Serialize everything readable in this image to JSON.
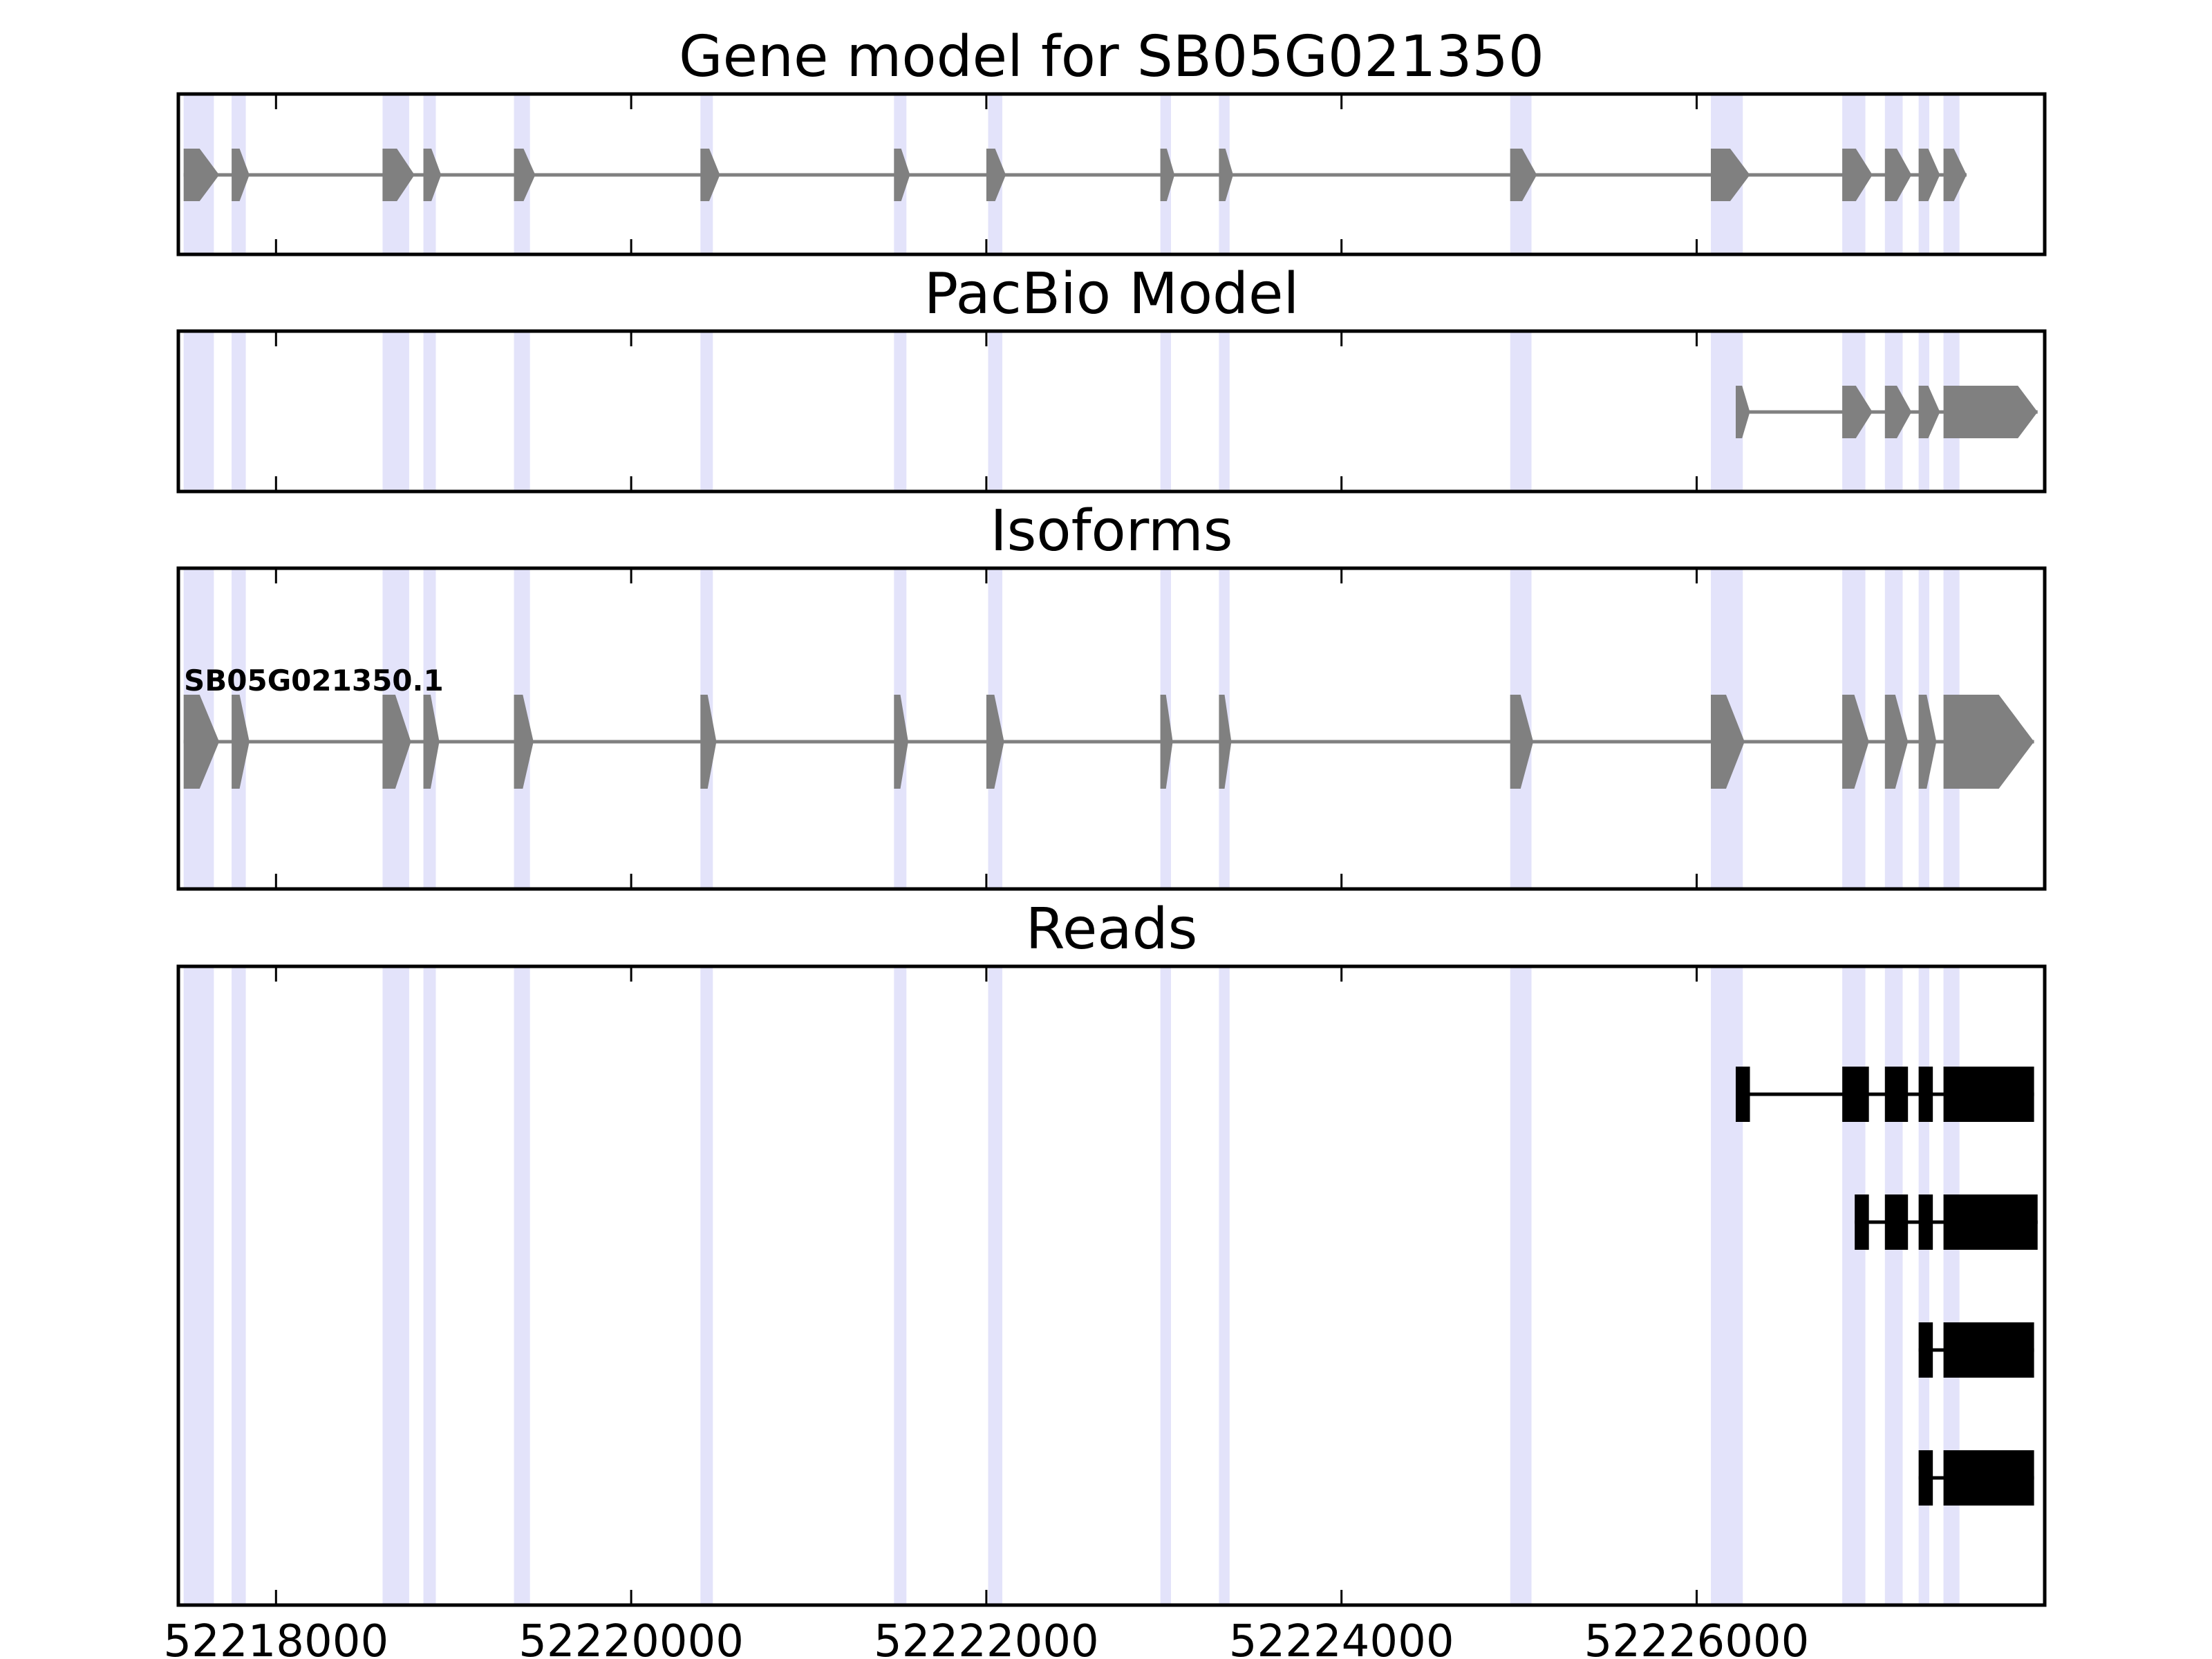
{
  "chart_data": {
    "type": "gene-track",
    "x_range": [
      52217450,
      52227960
    ],
    "x_ticks": [
      52218000,
      52220000,
      52222000,
      52224000,
      52226000
    ],
    "x_tick_labels": [
      "52218000",
      "52220000",
      "52222000",
      "52224000",
      "52226000"
    ],
    "grid": false,
    "colors": {
      "gene_feature": "#808080",
      "read_feature": "#000000",
      "exon_highlight": "#e3e3fa",
      "axes": "#000000"
    },
    "exon_highlights": [
      [
        52217480,
        52217650
      ],
      [
        52217750,
        52217830
      ],
      [
        52218600,
        52218750
      ],
      [
        52218830,
        52218900
      ],
      [
        52219340,
        52219430
      ],
      [
        52220390,
        52220460
      ],
      [
        52221480,
        52221550
      ],
      [
        52222010,
        52222090
      ],
      [
        52222980,
        52223040
      ],
      [
        52223310,
        52223370
      ],
      [
        52224950,
        52225070
      ],
      [
        52226080,
        52226260
      ],
      [
        52226820,
        52226950
      ],
      [
        52227060,
        52227160
      ],
      [
        52227250,
        52227310
      ],
      [
        52227390,
        52227480
      ]
    ],
    "panels": [
      {
        "title": "Gene model for SB05G021350",
        "tracks": [
          {
            "label": "",
            "style": "arrow",
            "color": "#808080",
            "exons": [
              [
                52217480,
                52217680
              ],
              [
                52217750,
                52217850
              ],
              [
                52218600,
                52218780
              ],
              [
                52218830,
                52218930
              ],
              [
                52219340,
                52219460
              ],
              [
                52220390,
                52220500
              ],
              [
                52221480,
                52221570
              ],
              [
                52222000,
                52222110
              ],
              [
                52222980,
                52223060
              ],
              [
                52223310,
                52223390
              ],
              [
                52224950,
                52225100
              ],
              [
                52226080,
                52226300
              ],
              [
                52226820,
                52226990
              ],
              [
                52227060,
                52227210
              ],
              [
                52227250,
                52227370
              ],
              [
                52227390,
                52227520
              ]
            ]
          }
        ]
      },
      {
        "title": "PacBio Model",
        "tracks": [
          {
            "label": "",
            "style": "arrow",
            "color": "#808080",
            "exons": [
              [
                52226220,
                52226300
              ],
              [
                52226820,
                52226990
              ],
              [
                52227060,
                52227210
              ],
              [
                52227250,
                52227370
              ],
              [
                52227390,
                52227920
              ]
            ]
          }
        ]
      },
      {
        "title": "Isoforms",
        "tracks": [
          {
            "label": "SB05G021350.1",
            "style": "arrow",
            "color": "#808080",
            "exons": [
              [
                52217480,
                52217680
              ],
              [
                52217750,
                52217850
              ],
              [
                52218600,
                52218760
              ],
              [
                52218830,
                52218920
              ],
              [
                52219340,
                52219450
              ],
              [
                52220390,
                52220480
              ],
              [
                52221480,
                52221560
              ],
              [
                52222000,
                52222100
              ],
              [
                52222980,
                52223050
              ],
              [
                52223310,
                52223380
              ],
              [
                52224950,
                52225080
              ],
              [
                52226080,
                52226270
              ],
              [
                52226820,
                52226970
              ],
              [
                52227060,
                52227190
              ],
              [
                52227250,
                52227350
              ],
              [
                52227390,
                52227900
              ]
            ]
          }
        ]
      },
      {
        "title": "Reads",
        "tracks": [
          {
            "label": "",
            "style": "block",
            "color": "#000000",
            "exons": [
              [
                52226220,
                52226300
              ],
              [
                52226820,
                52226970
              ],
              [
                52227060,
                52227190
              ],
              [
                52227250,
                52227330
              ],
              [
                52227390,
                52227900
              ]
            ]
          },
          {
            "label": "",
            "style": "block",
            "color": "#000000",
            "exons": [
              [
                52226890,
                52226970
              ],
              [
                52227060,
                52227190
              ],
              [
                52227250,
                52227330
              ],
              [
                52227390,
                52227920
              ]
            ]
          },
          {
            "label": "",
            "style": "block",
            "color": "#000000",
            "exons": [
              [
                52227250,
                52227330
              ],
              [
                52227390,
                52227900
              ]
            ]
          },
          {
            "label": "",
            "style": "block",
            "color": "#000000",
            "exons": [
              [
                52227250,
                52227330
              ],
              [
                52227390,
                52227900
              ]
            ]
          }
        ]
      }
    ]
  }
}
